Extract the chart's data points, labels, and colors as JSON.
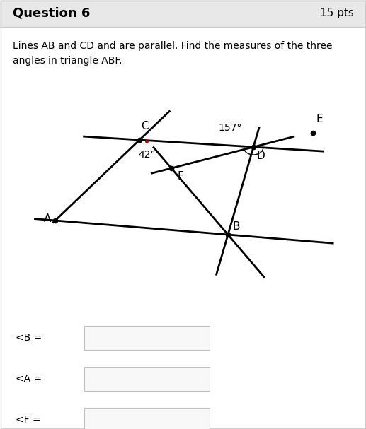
{
  "title": "Question 6",
  "pts": "15 pts",
  "header_bg": "#e8e8e8",
  "description": "Lines AB and CD and are parallel. Find the measures of the three\nangles in triangle ABF.",
  "fig_bg": "#ffffff",
  "border_color": "#cccccc",
  "angle_42_label": "42°",
  "angle_157_label": "157°",
  "dot_color": "#000000",
  "line_color": "#000000",
  "line_width": 2.0,
  "label_B_text": "<B =",
  "label_A_text": "<A =",
  "label_F_text": "<F =",
  "input_box_color": "#f8f8f8",
  "input_box_border": "#c0c0c0",
  "red_dot_color": "#cc0000"
}
